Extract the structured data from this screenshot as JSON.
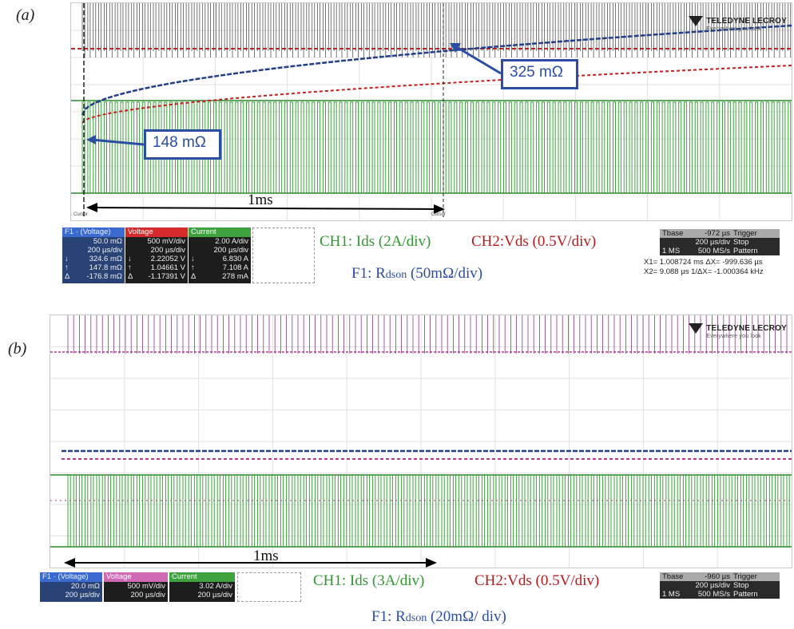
{
  "chart_data": [
    {
      "type": "line",
      "panel_label": "(a)",
      "logo": {
        "brand": "TELEDYNE LECROY",
        "tagline": "Everywhere you look"
      },
      "callouts": [
        {
          "id": "low",
          "text": "148 mΩ",
          "value_mohm": 148
        },
        {
          "id": "high",
          "text": "325 mΩ",
          "value_mohm": 325
        }
      ],
      "span_label": "1ms",
      "cursor_labels": [
        "Cursor",
        "Cursor"
      ],
      "channel_legend": {
        "ch1": "CH1: Ids (2A/div)",
        "ch2": "CH2:Vds (0.5V/div)",
        "f1_main": "F1: R",
        "f1_sub": "dson",
        "f1_scale": " (50mΩ/div)"
      },
      "series": [
        {
          "name": "F1",
          "color": "#233f8c",
          "role": "Rdson",
          "start_mohm": 148,
          "end_mohm": 325
        },
        {
          "name": "Voltage",
          "color": "#c21f1f",
          "role": "Vds"
        },
        {
          "name": "Current",
          "color": "#3ea33e",
          "role": "Ids"
        }
      ],
      "measure_boxes": [
        {
          "id": "f1",
          "header": "F1 · (Voltage)",
          "rows": [
            {
              "l": "",
              "v": "50.0 mΩ"
            },
            {
              "l": "",
              "v": "200 µs/div"
            },
            {
              "l": "↓",
              "v": "324.6 mΩ"
            },
            {
              "l": "↑",
              "v": "147.8 mΩ"
            },
            {
              "l": "Δ",
              "v": "-176.8 mΩ"
            }
          ]
        },
        {
          "id": "c2",
          "header": "Voltage",
          "rows": [
            {
              "l": "",
              "v": "500 mV/div"
            },
            {
              "l": "",
              "v": "200 µs/div"
            },
            {
              "l": "↓",
              "v": "2.22052 V"
            },
            {
              "l": "↑",
              "v": "1.04661 V"
            },
            {
              "l": "Δ",
              "v": "-1.17391 V"
            }
          ]
        },
        {
          "id": "c1",
          "header": "Current",
          "rows": [
            {
              "l": "",
              "v": "2.00 A/div"
            },
            {
              "l": "",
              "v": "200 µs/div"
            },
            {
              "l": "↓",
              "v": "6.830 A"
            },
            {
              "l": "↑",
              "v": "7.108 A"
            },
            {
              "l": "Δ",
              "v": "278 mA"
            }
          ]
        }
      ],
      "timebase": {
        "rows": [
          [
            "Tbase",
            "-972 µs",
            "Trigger"
          ],
          [
            "",
            "200 µs/div",
            "Stop"
          ],
          [
            "1 MS",
            "500 MS/s",
            "Pattern"
          ]
        ]
      },
      "cursor_readout": [
        "X1=  1.008724 ms    ΔX=      -999.636 µs",
        "X2=       9.088 µs  1/ΔX=  -1.000364 kHz"
      ]
    },
    {
      "type": "line",
      "panel_label": "(b)",
      "logo": {
        "brand": "TELEDYNE LECROY",
        "tagline": "Everywhere you look"
      },
      "span_label": "1ms",
      "channel_legend": {
        "ch1": "CH1: Ids (3A/div)",
        "ch2": "CH2:Vds (0.5V/div)",
        "f1_main": "F1: R",
        "f1_sub": "dson",
        "f1_scale": " (20mΩ/  div)"
      },
      "series": [
        {
          "name": "F1",
          "color": "#233f8c",
          "role": "Rdson"
        },
        {
          "name": "Voltage",
          "color": "#b0388e",
          "role": "Vds"
        },
        {
          "name": "Current",
          "color": "#3ea33e",
          "role": "Ids"
        }
      ],
      "measure_boxes": [
        {
          "id": "f1",
          "header": "F1 · (Voltage)",
          "rows": [
            {
              "l": "",
              "v": "20.0 mΩ"
            },
            {
              "l": "",
              "v": "200 µs/div"
            }
          ]
        },
        {
          "id": "c2",
          "header": "Voltage",
          "rows": [
            {
              "l": "",
              "v": "500 mV/div"
            },
            {
              "l": "",
              "v": "200 µs/div"
            }
          ]
        },
        {
          "id": "c1",
          "header": "Current",
          "rows": [
            {
              "l": "",
              "v": "3.02 A/div"
            },
            {
              "l": "",
              "v": "200 µs/div"
            }
          ]
        }
      ],
      "timebase": {
        "rows": [
          [
            "Tbase",
            "-960 µs",
            "Trigger"
          ],
          [
            "",
            "200 µs/div",
            "Stop"
          ],
          [
            "1 MS",
            "500 MS/s",
            "Pattern"
          ]
        ]
      }
    }
  ]
}
